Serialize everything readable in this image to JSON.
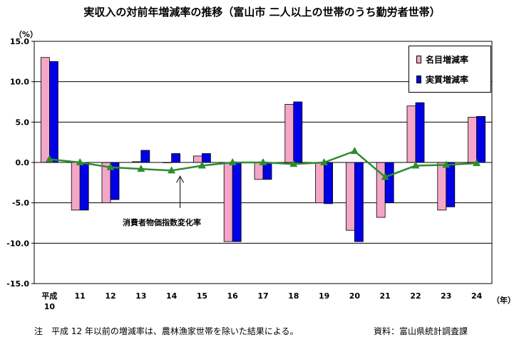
{
  "header": {
    "title": "実収入の対前年増減率の推移（富山市 二人以上の世帯のうち勤労者世帯）"
  },
  "annotation": "消費者物価指数変化率",
  "footer": {
    "note": "注　平成 12 年以前の増減率は、農林漁家世帯を除いた結果による。",
    "source": "資料：富山県統計調査課"
  },
  "colors": {
    "nominal": "#f4a6c8",
    "real": "#0000e6",
    "cpi": "#2e8b2e"
  },
  "chart_data": {
    "type": "bar",
    "ylabel": "（%）",
    "xlabel": "（年）",
    "ylim": [
      -15.0,
      15.0
    ],
    "yticks": [
      "15.0",
      "10.0",
      "5.0",
      "0.0",
      "-5.0",
      "-10.0",
      "-15.0"
    ],
    "grid": true,
    "legend_position": "top-right",
    "categories": [
      "平成\n10",
      "11",
      "12",
      "13",
      "14",
      "15",
      "16",
      "17",
      "18",
      "19",
      "20",
      "21",
      "22",
      "23",
      "24"
    ],
    "series": [
      {
        "name": "名目増減率",
        "type": "bar",
        "values": [
          13.0,
          -5.9,
          -5.0,
          0.1,
          0.0,
          0.8,
          -9.8,
          -2.1,
          7.2,
          -5.0,
          -8.4,
          -6.8,
          7.0,
          -5.9,
          5.6
        ]
      },
      {
        "name": "実質増減率",
        "type": "bar",
        "values": [
          12.5,
          -5.9,
          -4.6,
          1.5,
          1.1,
          1.1,
          -9.8,
          -2.1,
          7.5,
          -5.1,
          -9.8,
          -5.0,
          7.4,
          -5.5,
          5.7
        ]
      },
      {
        "name": "消費者物価指数変化率",
        "type": "line",
        "values": [
          0.4,
          0.0,
          -0.6,
          -0.8,
          -1.0,
          -0.4,
          0.0,
          0.0,
          -0.2,
          0.0,
          1.4,
          -1.8,
          -0.4,
          -0.3,
          -0.1
        ]
      }
    ]
  }
}
